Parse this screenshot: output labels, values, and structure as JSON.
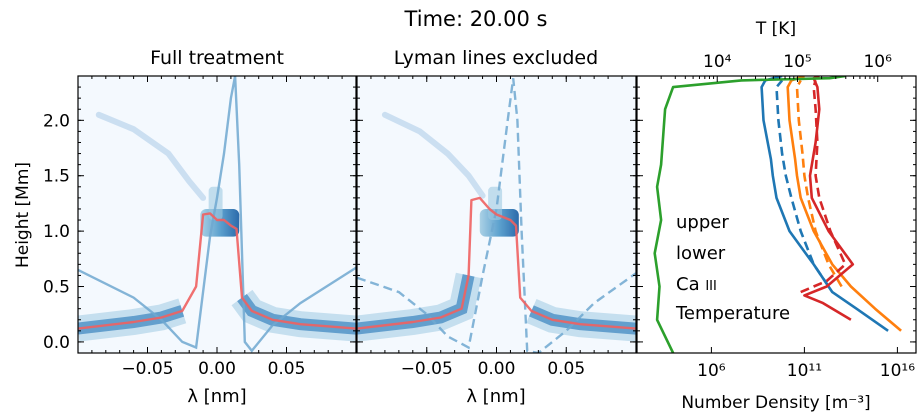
{
  "title": "Time: 20.00 s",
  "panels": [
    {
      "title": "Full treatment",
      "xlabel": "λ [nm]",
      "line_style": "solid"
    },
    {
      "title": "Lyman lines excluded",
      "xlabel": "λ [nm]",
      "line_style": "dashed"
    }
  ],
  "ylabel": "Height [Mm]",
  "right_panel": {
    "xlabel": "Number Density [m⁻³]",
    "top_label": "T [K]",
    "legend": [
      "upper",
      "lower",
      "Ca III",
      "Temperature"
    ]
  },
  "colors": {
    "upper": "#1f77b4",
    "lower": "#ff7f0e",
    "ca": "#d62728",
    "temp": "#2ca02c",
    "profile": "#6fa8d0",
    "centroid": "#f06060"
  },
  "chart_data": [
    {
      "type": "heatmap",
      "title": "Full treatment",
      "xlabel": "λ [nm]",
      "ylabel": "Height [Mm]",
      "xlim": [
        -0.1,
        0.1
      ],
      "ylim": [
        -0.1,
        2.4
      ],
      "xticks": [
        "−0.05",
        "0.00",
        "0.05"
      ],
      "yticks": [
        "0.0",
        "0.5",
        "1.0",
        "1.5",
        "2.0"
      ],
      "centroid_curve": {
        "x": [
          -0.1,
          -0.06,
          -0.04,
          -0.025,
          -0.015,
          -0.01,
          -0.005,
          0.0,
          0.005,
          0.01,
          0.014,
          0.018,
          0.025,
          0.04,
          0.06,
          0.1
        ],
        "y": [
          0.12,
          0.18,
          0.22,
          0.28,
          0.5,
          1.15,
          1.16,
          1.1,
          1.1,
          1.05,
          1.02,
          0.4,
          0.28,
          0.2,
          0.16,
          0.12
        ]
      },
      "line_profile": {
        "x": [
          -0.1,
          -0.06,
          -0.04,
          -0.025,
          -0.015,
          -0.005,
          0.0,
          0.005,
          0.01,
          0.013,
          0.016,
          0.02,
          0.025,
          0.04,
          0.06,
          0.1
        ],
        "y": [
          0.65,
          0.4,
          0.2,
          0.0,
          -0.05,
          0.95,
          1.3,
          1.7,
          2.2,
          2.4,
          1.6,
          0.0,
          -0.08,
          0.15,
          0.35,
          0.67
        ]
      }
    },
    {
      "type": "heatmap",
      "title": "Lyman lines excluded",
      "xlabel": "λ [nm]",
      "xlim": [
        -0.1,
        0.1
      ],
      "ylim": [
        -0.1,
        2.4
      ],
      "xticks": [
        "−0.05",
        "0.00",
        "0.05"
      ],
      "centroid_curve": {
        "x": [
          -0.1,
          -0.06,
          -0.04,
          -0.025,
          -0.02,
          -0.018,
          -0.012,
          -0.005,
          0.0,
          0.01,
          0.014,
          0.017,
          0.025,
          0.04,
          0.06,
          0.1
        ],
        "y": [
          0.12,
          0.18,
          0.22,
          0.3,
          0.6,
          1.28,
          1.3,
          1.2,
          1.15,
          1.1,
          1.05,
          0.4,
          0.28,
          0.2,
          0.16,
          0.12
        ]
      },
      "line_profile": {
        "x": [
          -0.1,
          -0.07,
          -0.05,
          -0.035,
          -0.02,
          -0.01,
          0.0,
          0.008,
          0.012,
          0.015,
          0.018,
          0.022,
          0.03,
          0.05,
          0.07,
          0.1
        ],
        "y": [
          0.58,
          0.45,
          0.25,
          0.05,
          -0.05,
          0.6,
          1.2,
          2.0,
          2.38,
          2.0,
          1.0,
          -0.08,
          -0.1,
          0.1,
          0.35,
          0.62
        ]
      }
    },
    {
      "type": "line",
      "xlabel": "Number Density [m⁻³]",
      "xscale": "log",
      "xlim": [
        100.0,
        1e+17
      ],
      "xticks": [
        "10⁶",
        "10¹¹",
        "10¹⁶"
      ],
      "top_axis": {
        "label": "T [K]",
        "scale": "log",
        "xlim": [
          1000.0,
          3000000.0
        ],
        "ticks": [
          "10⁴",
          "10⁵",
          "10⁶"
        ]
      },
      "ylim": [
        -0.1,
        2.4
      ],
      "series": [
        {
          "name": "upper",
          "style": "solid",
          "y": [
            0.1,
            0.3,
            0.45,
            0.7,
            1.0,
            1.3,
            1.5,
            1.65,
            2.0,
            2.3,
            2.36,
            2.4
          ],
          "log10_x": [
            15.5,
            13.8,
            12.5,
            11.5,
            10.2,
            9.5,
            9.3,
            9.2,
            8.8,
            8.7,
            8.9,
            9.8
          ]
        },
        {
          "name": "upper",
          "style": "dashed",
          "y": [
            0.5,
            0.7,
            1.0,
            1.3,
            1.5,
            1.7,
            2.0,
            2.3,
            2.36
          ],
          "log10_x": [
            12.3,
            11.5,
            10.8,
            10.3,
            10.0,
            9.8,
            9.6,
            9.5,
            9.8
          ]
        },
        {
          "name": "lower",
          "style": "solid",
          "y": [
            0.1,
            0.3,
            0.5,
            0.7,
            1.0,
            1.3,
            1.5,
            1.65,
            2.0,
            2.3,
            2.36,
            2.4
          ],
          "log10_x": [
            16.2,
            14.8,
            13.5,
            12.5,
            11.5,
            10.8,
            10.6,
            10.5,
            10.2,
            10.1,
            10.3,
            11.0
          ]
        },
        {
          "name": "lower",
          "style": "dashed",
          "y": [
            0.5,
            0.7,
            1.0,
            1.3,
            1.5,
            1.7,
            2.0,
            2.3,
            2.36
          ],
          "log10_x": [
            13.0,
            12.3,
            11.6,
            11.2,
            11.0,
            10.9,
            10.7,
            10.6,
            10.8
          ]
        },
        {
          "name": "Ca III",
          "style": "solid",
          "y": [
            0.2,
            0.35,
            0.42,
            0.5,
            0.7,
            1.0,
            1.3,
            1.5,
            1.8,
            2.1,
            2.3,
            2.38,
            2.4
          ],
          "log10_x": [
            13.5,
            12.0,
            11.0,
            12.2,
            13.6,
            12.3,
            11.4,
            11.3,
            11.6,
            11.8,
            11.7,
            11.5,
            11.8
          ]
        },
        {
          "name": "Ca III",
          "style": "dashed",
          "y": [
            0.45,
            0.5,
            0.55,
            0.7,
            1.0,
            1.3,
            1.5,
            1.8,
            2.1,
            2.3,
            2.36
          ],
          "log10_x": [
            10.8,
            11.5,
            12.2,
            13.2,
            12.4,
            11.8,
            11.6,
            11.7,
            11.6,
            11.5,
            11.6
          ]
        },
        {
          "name": "Temperature",
          "style": "solid",
          "axis": "top",
          "y": [
            -0.1,
            0.2,
            0.5,
            0.8,
            1.1,
            1.4,
            1.6,
            1.9,
            2.1,
            2.3,
            2.36,
            2.38,
            2.4
          ],
          "log10_x": [
            3.45,
            3.25,
            3.28,
            3.22,
            3.3,
            3.25,
            3.3,
            3.33,
            3.35,
            3.45,
            4.3,
            5.4,
            5.6
          ]
        }
      ]
    }
  ]
}
